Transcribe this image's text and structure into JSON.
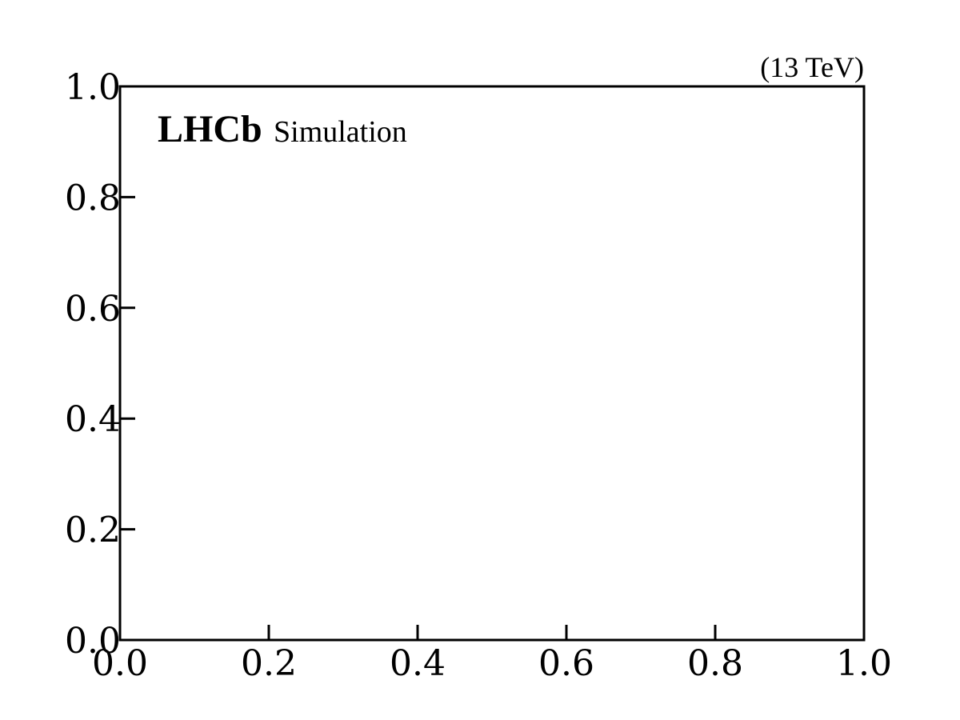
{
  "chart_data": {
    "type": "scatter",
    "series": [],
    "xlim": [
      0.0,
      1.0
    ],
    "ylim": [
      0.0,
      1.0
    ],
    "x_ticks": [
      "0.0",
      "0.2",
      "0.4",
      "0.6",
      "0.8",
      "1.0"
    ],
    "y_ticks": [
      "0.0",
      "0.2",
      "0.4",
      "0.6",
      "0.8",
      "1.0"
    ],
    "grid": false,
    "annotations": {
      "experiment": "LHCb",
      "label": "Simulation",
      "energy": "(13 TeV)"
    },
    "colors": {
      "axis": "#000000",
      "background": "#ffffff"
    }
  }
}
